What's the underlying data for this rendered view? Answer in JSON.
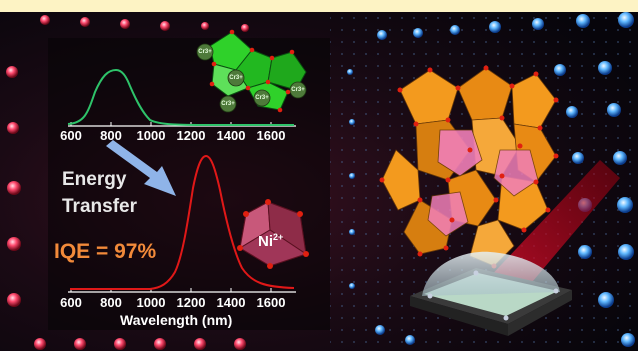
{
  "top_plot": {
    "tick_labels": [
      "600",
      "800",
      "1000",
      "1200",
      "1400",
      "1600"
    ],
    "line_color": "#2ec36a"
  },
  "bottom_plot": {
    "tick_labels": [
      "600",
      "800",
      "1000",
      "1200",
      "1400",
      "1600"
    ],
    "xlabel": "Wavelength (nm)",
    "line_color": "#e01818"
  },
  "energy_transfer": {
    "line1": "Energy",
    "line2": "Transfer"
  },
  "iqe": "IQE = 97%",
  "cr_ions": [
    "Cr3+",
    "Cr3+",
    "Cr3+",
    "Cr3+",
    "Cr3+"
  ],
  "ni_ion": {
    "symbol": "Ni",
    "charge": "2+"
  },
  "colors": {
    "background_dark": "#08060c",
    "banner": "#fdf3c4",
    "lattice_orange": "#f39a1e",
    "lattice_pink": "#f07fb8",
    "iqe_orange": "#f28a3a",
    "cr_octahedra": "#2fd12a",
    "ni_octahedron": "#b0405f"
  }
}
